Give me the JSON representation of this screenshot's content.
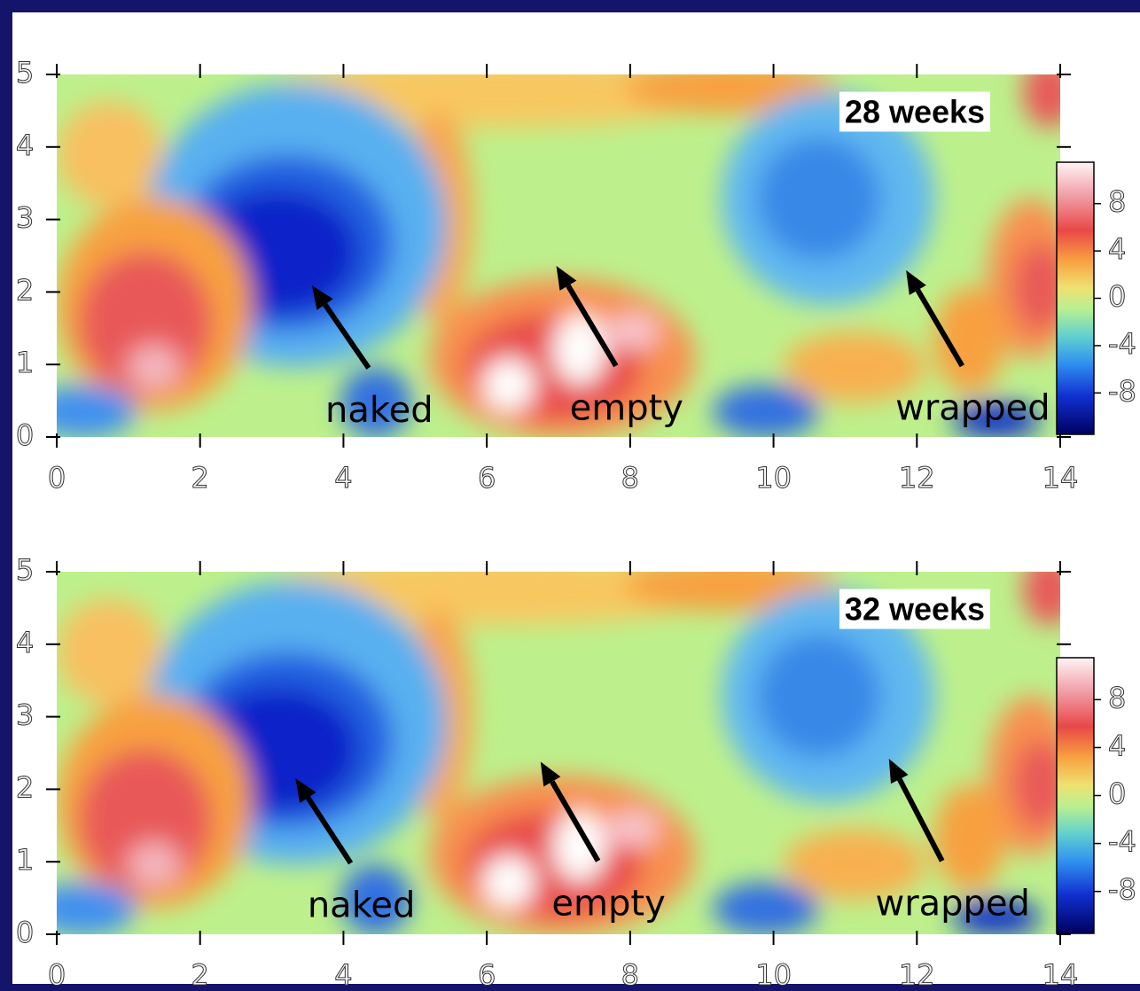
{
  "chart_data": [
    {
      "type": "heatmap",
      "label": "28 weeks",
      "xlim": [
        0,
        14
      ],
      "xticks": [
        0,
        2,
        4,
        6,
        8,
        10,
        12,
        14
      ],
      "ylim": [
        0,
        5
      ],
      "yticks": [
        0,
        1,
        2,
        3,
        4,
        5
      ],
      "colorbar": {
        "clim": [
          -11.5,
          11.5
        ],
        "ticks": [
          8,
          4,
          0,
          -4,
          -8
        ]
      },
      "annotations": [
        {
          "text": "naked",
          "xy": [
            3.56,
            2.09
          ],
          "xytext": [
            4.5,
            0.34
          ]
        },
        {
          "text": "empty",
          "xy": [
            6.97,
            2.36
          ],
          "xytext": [
            7.95,
            0.37
          ]
        },
        {
          "text": "wrapped",
          "xy": [
            11.85,
            2.3
          ],
          "xytext": [
            12.78,
            0.37
          ]
        }
      ]
    },
    {
      "type": "heatmap",
      "label": "32 weeks",
      "xlim": [
        0,
        14
      ],
      "xticks": [
        0,
        2,
        4,
        6,
        8,
        10,
        12,
        14
      ],
      "ylim": [
        0,
        5
      ],
      "yticks": [
        0,
        1,
        2,
        3,
        4,
        5
      ],
      "colorbar": {
        "clim": [
          -11.5,
          11.5
        ],
        "ticks": [
          8,
          4,
          0,
          -4,
          -8
        ]
      },
      "annotations": [
        {
          "text": "naked",
          "xy": [
            3.33,
            2.15
          ],
          "xytext": [
            4.25,
            0.37
          ]
        },
        {
          "text": "empty",
          "xy": [
            6.75,
            2.38
          ],
          "xytext": [
            7.7,
            0.4
          ]
        },
        {
          "text": "wrapped",
          "xy": [
            11.61,
            2.42
          ],
          "xytext": [
            12.5,
            0.4
          ]
        }
      ]
    }
  ]
}
